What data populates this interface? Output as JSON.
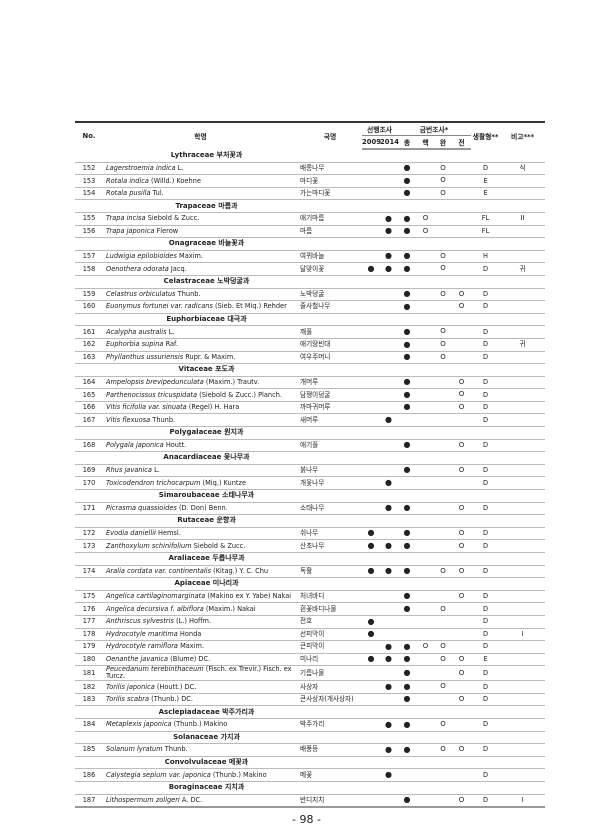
{
  "header": {
    "no": "No.",
    "sci": "학명",
    "kor": "국명",
    "prior": "선행조사",
    "prior_years": [
      "2009",
      "2014"
    ],
    "current": "금번조사*",
    "current_cols": [
      "총",
      "핵",
      "완",
      "전"
    ],
    "lifeform": "생활형**",
    "note": "비고***"
  },
  "marks": {
    "filled": "●",
    "open": "O"
  },
  "rows": [
    {
      "family": "Lythraceae 부처꽃과"
    },
    {
      "no": "152",
      "sci": "Lagerstroemia indica",
      "author": " L.",
      "kor": "배롱나무",
      "m": [
        "",
        "",
        "●",
        "",
        "O",
        ""
      ],
      "lf": "D",
      "note": "식"
    },
    {
      "no": "153",
      "sci": "Rotala indica",
      "author": " (Willd.) Koehne",
      "kor": "마디꽃",
      "m": [
        "",
        "",
        "●",
        "",
        "O",
        ""
      ],
      "lf": "E",
      "note": ""
    },
    {
      "no": "154",
      "sci": "Rotala pusilla",
      "author": " Tul.",
      "kor": "가는마디꽃",
      "m": [
        "",
        "",
        "●",
        "",
        "O",
        ""
      ],
      "lf": "E",
      "note": ""
    },
    {
      "family": "Trapaceae 마름과"
    },
    {
      "no": "155",
      "sci": "Trapa incisa",
      "author": " Siebold & Zucc.",
      "kor": "애기마름",
      "m": [
        "",
        "●",
        "●",
        "O",
        "",
        ""
      ],
      "lf": "FL",
      "note": "II"
    },
    {
      "no": "156",
      "sci": "Trapa japonica",
      "author": " Flerow",
      "kor": "마름",
      "m": [
        "",
        "●",
        "●",
        "O",
        "",
        ""
      ],
      "lf": "FL",
      "note": ""
    },
    {
      "family": "Onagraceae 바늘꽃과"
    },
    {
      "no": "157",
      "sci": "Ludwigia epilobioides",
      "author": " Maxim.",
      "kor": "여뀌바늘",
      "m": [
        "",
        "●",
        "●",
        "",
        "O",
        ""
      ],
      "lf": "H",
      "note": ""
    },
    {
      "no": "158",
      "sci": "Oenothera odorata",
      "author": " Jacq.",
      "kor": "달맞이꽃",
      "m": [
        "●",
        "●",
        "●",
        "",
        "O",
        ""
      ],
      "lf": "D",
      "note": "귀"
    },
    {
      "family": "Celastraceae 노박덩굴과"
    },
    {
      "no": "159",
      "sci": "Celastrus orbiculatus",
      "author": " Thunb.",
      "kor": "노박덩굴",
      "m": [
        "",
        "",
        "●",
        "",
        "O",
        "O"
      ],
      "lf": "D",
      "note": ""
    },
    {
      "no": "160",
      "sci": "Euonymus fortunei var. radicans",
      "author": " (Sieb. Et Miq.) Rehder",
      "kor": "줄사철나무",
      "m": [
        "",
        "",
        "●",
        "",
        "",
        "O"
      ],
      "lf": "D",
      "note": ""
    },
    {
      "family": "Euphorbiaceae 대극과"
    },
    {
      "no": "161",
      "sci": "Acalypha australis",
      "author": " L.",
      "kor": "깨풀",
      "m": [
        "",
        "",
        "●",
        "",
        "O",
        ""
      ],
      "lf": "D",
      "note": ""
    },
    {
      "no": "162",
      "sci": "Euphorbia supina",
      "author": " Raf.",
      "kor": "애기땅빈대",
      "m": [
        "",
        "",
        "●",
        "",
        "O",
        ""
      ],
      "lf": "D",
      "note": "귀"
    },
    {
      "no": "163",
      "sci": "Phyllanthus ussuriensis",
      "author": " Rupr. & Maxim.",
      "kor": "여우주머니",
      "m": [
        "",
        "",
        "●",
        "",
        "O",
        ""
      ],
      "lf": "D",
      "note": ""
    },
    {
      "family": "Vitaceae 포도과"
    },
    {
      "no": "164",
      "sci": "Ampelopsis brevipedunculata",
      "author": " (Maxim.) Trautv.",
      "kor": "개머루",
      "m": [
        "",
        "",
        "●",
        "",
        "",
        "O"
      ],
      "lf": "D",
      "note": ""
    },
    {
      "no": "165",
      "sci": "Parthenocissus tricuspidata",
      "author": " (Siebold & Zucc.) Planch.",
      "kor": "담쟁이덩굴",
      "m": [
        "",
        "",
        "●",
        "",
        "",
        "O"
      ],
      "lf": "D",
      "note": ""
    },
    {
      "no": "166",
      "sci": "Vitis ficifolia var. sinuata",
      "author": " (Regel) H. Hara",
      "kor": "까마귀머루",
      "m": [
        "",
        "",
        "●",
        "",
        "",
        "O"
      ],
      "lf": "D",
      "note": ""
    },
    {
      "no": "167",
      "sci": "Vitis flexuosa",
      "author": " Thunb.",
      "kor": "새머루",
      "m": [
        "",
        "●",
        "",
        "",
        "",
        ""
      ],
      "lf": "D",
      "note": ""
    },
    {
      "family": "Polygalaceae 원지과"
    },
    {
      "no": "168",
      "sci": "Polygala japonica",
      "author": " Houtt.",
      "kor": "애기풀",
      "m": [
        "",
        "",
        "●",
        "",
        "",
        "O"
      ],
      "lf": "D",
      "note": ""
    },
    {
      "family": "Anacardiaceae 옻나무과"
    },
    {
      "no": "169",
      "sci": "Rhus javanica",
      "author": " L.",
      "kor": "붉나무",
      "m": [
        "",
        "",
        "●",
        "",
        "",
        "O"
      ],
      "lf": "D",
      "note": ""
    },
    {
      "no": "170",
      "sci": "Toxicodendron trichocarpum",
      "author": " (Miq.) Kuntze",
      "kor": "개옻나무",
      "m": [
        "",
        "●",
        "",
        "",
        "",
        ""
      ],
      "lf": "D",
      "note": ""
    },
    {
      "family": "Simaroubaceae 소태나무과"
    },
    {
      "no": "171",
      "sci": "Picrasma quassioides",
      "author": " (D. Don) Benn.",
      "kor": "소태나무",
      "m": [
        "",
        "●",
        "●",
        "",
        "",
        "O"
      ],
      "lf": "D",
      "note": ""
    },
    {
      "family": "Rutaceae 운향과"
    },
    {
      "no": "172",
      "sci": "Evodia daniellii",
      "author": " Hemsl.",
      "kor": "쉬나무",
      "m": [
        "●",
        "",
        "●",
        "",
        "",
        "O"
      ],
      "lf": "D",
      "note": ""
    },
    {
      "no": "173",
      "sci": "Zanthoxylum schinifolium",
      "author": " Siebold & Zucc.",
      "kor": "산초나무",
      "m": [
        "●",
        "●",
        "●",
        "",
        "",
        "O"
      ],
      "lf": "D",
      "note": ""
    },
    {
      "family": "Araliaceae 두릅나무과"
    },
    {
      "no": "174",
      "sci": "Aralia cordata var. continentalis",
      "author": " (Kitag.) Y. C. Chu",
      "kor": "독활",
      "m": [
        "●",
        "●",
        "●",
        "",
        "O",
        "O"
      ],
      "lf": "D",
      "note": ""
    },
    {
      "family": "Apiaceae 미나리과"
    },
    {
      "no": "175",
      "sci": "Angelica cartilaginomarginata",
      "author": " (Makino ex Y. Yabe) Nakai",
      "kor": "처녀바디",
      "m": [
        "",
        "",
        "●",
        "",
        "",
        "O"
      ],
      "lf": "D",
      "note": ""
    },
    {
      "no": "176",
      "sci": "Angelica decursiva f. albiflora",
      "author": " (Maxim.) Nakai",
      "kor": "흰꽃바디나물",
      "m": [
        "",
        "",
        "●",
        "",
        "O",
        ""
      ],
      "lf": "D",
      "note": ""
    },
    {
      "no": "177",
      "sci": "Anthriscus sylvestris",
      "author": " (L.) Hoffm.",
      "kor": "전호",
      "m": [
        "●",
        "",
        "",
        "",
        "",
        ""
      ],
      "lf": "D",
      "note": ""
    },
    {
      "no": "178",
      "sci": "Hydrocotyle maritima",
      "author": " Honda",
      "kor": "선피막이",
      "m": [
        "●",
        "",
        "",
        "",
        "",
        ""
      ],
      "lf": "D",
      "note": "I"
    },
    {
      "no": "179",
      "sci": "Hydrocotyle ramiflora",
      "author": " Maxim.",
      "kor": "큰피막이",
      "m": [
        "",
        "●",
        "●",
        "O",
        "O",
        ""
      ],
      "lf": "D",
      "note": ""
    },
    {
      "no": "180",
      "sci": "Oenanthe javanica",
      "author": " (Blume) DC.",
      "kor": "미나리",
      "m": [
        "●",
        "●",
        "●",
        "",
        "O",
        "O"
      ],
      "lf": "E",
      "note": ""
    },
    {
      "no": "181",
      "sci": "Peucedanum terebinthaceum",
      "author": " (Fisch. ex Trevir.) Fisch. ex Turcz.",
      "kor": "기름나물",
      "m": [
        "",
        "",
        "●",
        "",
        "",
        "O"
      ],
      "lf": "D",
      "note": ""
    },
    {
      "no": "182",
      "sci": "Torilis japonica",
      "author": " (Houtt.) DC.",
      "kor": "사상자",
      "m": [
        "",
        "●",
        "●",
        "",
        "O",
        ""
      ],
      "lf": "D",
      "note": ""
    },
    {
      "no": "183",
      "sci": "Torilis scabra",
      "author": " (Thunb.) DC.",
      "kor": "큰사상자(개사상자)",
      "m": [
        "",
        "",
        "●",
        "",
        "",
        "O"
      ],
      "lf": "D",
      "note": ""
    },
    {
      "family": "Asclepiadaceae 박주가리과"
    },
    {
      "no": "184",
      "sci": "Metaplexis japonica",
      "author": " (Thunb.) Makino",
      "kor": "박주가리",
      "m": [
        "",
        "●",
        "●",
        "",
        "O",
        ""
      ],
      "lf": "D",
      "note": ""
    },
    {
      "family": "Solanaceae 가지과"
    },
    {
      "no": "185",
      "sci": "Solanum lyratum",
      "author": " Thunb.",
      "kor": "배풍등",
      "m": [
        "",
        "●",
        "●",
        "",
        "O",
        "O"
      ],
      "lf": "D",
      "note": ""
    },
    {
      "family": "Convolvulaceae 메꽃과"
    },
    {
      "no": "186",
      "sci": "Calystegia sepium var. japonica",
      "author": " (Thunb.) Makino",
      "kor": "메꽃",
      "m": [
        "",
        "●",
        "",
        "",
        "",
        ""
      ],
      "lf": "D",
      "note": ""
    },
    {
      "family": "Boraginaceae 지치과"
    },
    {
      "no": "187",
      "sci": "Lithospermum zollgeri",
      "author": " A. DC.",
      "kor": "반디지치",
      "m": [
        "",
        "",
        "●",
        "",
        "",
        "O"
      ],
      "lf": "D",
      "note": "I"
    }
  ],
  "page_number": "- 98 -"
}
